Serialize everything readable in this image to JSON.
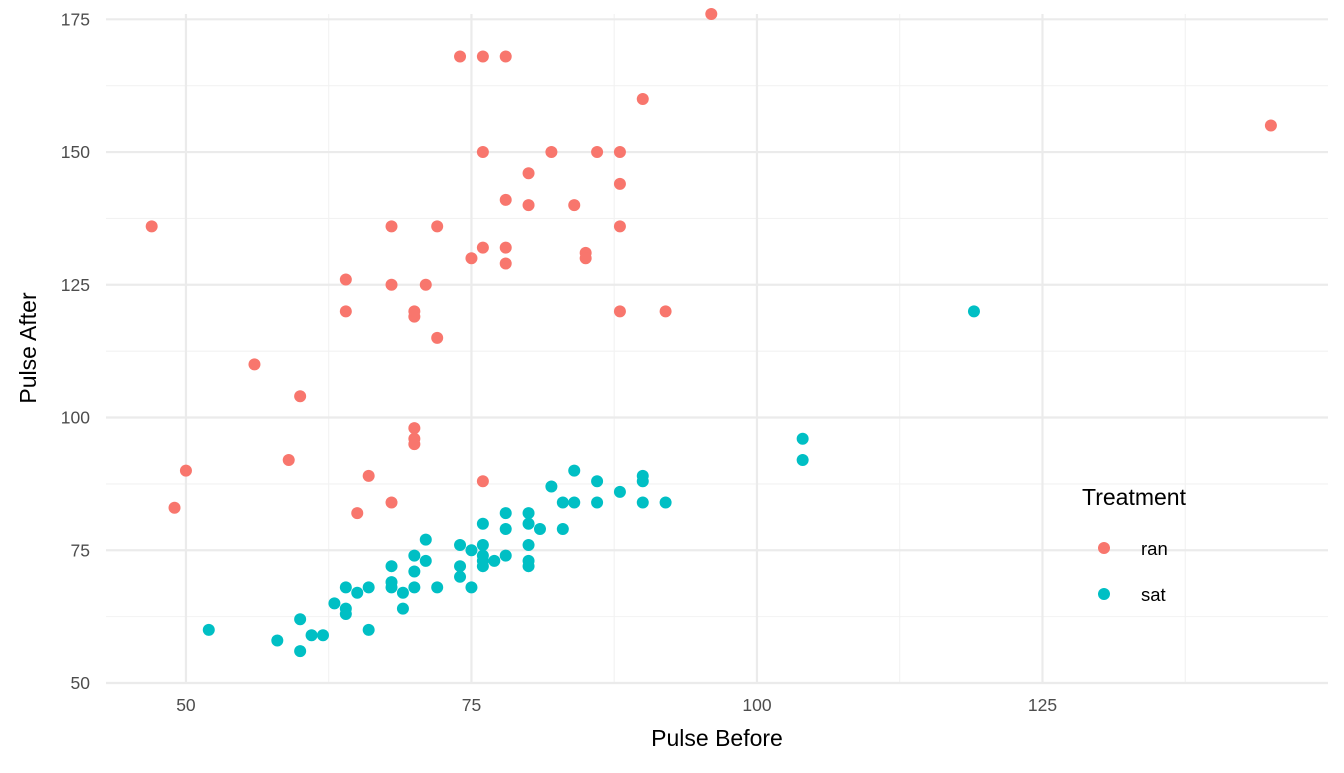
{
  "chart_data": {
    "type": "scatter",
    "title": "",
    "xlabel": "Pulse Before",
    "ylabel": "Pulse After",
    "xlim": [
      43,
      150
    ],
    "ylim": [
      50,
      176
    ],
    "x_ticks": [
      50,
      75,
      100,
      125
    ],
    "y_ticks": [
      50,
      75,
      100,
      125,
      150,
      175
    ],
    "grid": true,
    "legend": {
      "title": "Treatment",
      "position": "right"
    },
    "series": [
      {
        "name": "ran",
        "color": "#F8766D",
        "points": [
          [
            96,
            176
          ],
          [
            74,
            168
          ],
          [
            76,
            168
          ],
          [
            78,
            168
          ],
          [
            90,
            160
          ],
          [
            145,
            155
          ],
          [
            76,
            150
          ],
          [
            82,
            150
          ],
          [
            86,
            150
          ],
          [
            88,
            150
          ],
          [
            80,
            146
          ],
          [
            88,
            144
          ],
          [
            78,
            141
          ],
          [
            80,
            140
          ],
          [
            84,
            140
          ],
          [
            47,
            136
          ],
          [
            68,
            136
          ],
          [
            72,
            136
          ],
          [
            88,
            136
          ],
          [
            76,
            132
          ],
          [
            78,
            132
          ],
          [
            85,
            131
          ],
          [
            75,
            130
          ],
          [
            85,
            130
          ],
          [
            78,
            129
          ],
          [
            64,
            126
          ],
          [
            68,
            125
          ],
          [
            71,
            125
          ],
          [
            64,
            120
          ],
          [
            70,
            120
          ],
          [
            88,
            120
          ],
          [
            92,
            120
          ],
          [
            70,
            119
          ],
          [
            72,
            115
          ],
          [
            56,
            110
          ],
          [
            60,
            104
          ],
          [
            70,
            98
          ],
          [
            70,
            96
          ],
          [
            70,
            95
          ],
          [
            59,
            92
          ],
          [
            50,
            90
          ],
          [
            66,
            89
          ],
          [
            76,
            88
          ],
          [
            68,
            84
          ],
          [
            49,
            83
          ],
          [
            65,
            82
          ]
        ]
      },
      {
        "name": "sat",
        "color": "#00BFC4",
        "points": [
          [
            119,
            120
          ],
          [
            104,
            96
          ],
          [
            104,
            92
          ],
          [
            84,
            90
          ],
          [
            90,
            89
          ],
          [
            86,
            88
          ],
          [
            90,
            88
          ],
          [
            82,
            87
          ],
          [
            88,
            86
          ],
          [
            83,
            84
          ],
          [
            84,
            84
          ],
          [
            86,
            84
          ],
          [
            90,
            84
          ],
          [
            92,
            84
          ],
          [
            78,
            82
          ],
          [
            80,
            82
          ],
          [
            76,
            80
          ],
          [
            80,
            80
          ],
          [
            78,
            79
          ],
          [
            81,
            79
          ],
          [
            83,
            79
          ],
          [
            71,
            77
          ],
          [
            74,
            76
          ],
          [
            76,
            76
          ],
          [
            80,
            76
          ],
          [
            75,
            75
          ],
          [
            70,
            74
          ],
          [
            76,
            74
          ],
          [
            78,
            74
          ],
          [
            71,
            73
          ],
          [
            76,
            73
          ],
          [
            77,
            73
          ],
          [
            80,
            73
          ],
          [
            68,
            72
          ],
          [
            74,
            72
          ],
          [
            76,
            72
          ],
          [
            80,
            72
          ],
          [
            70,
            71
          ],
          [
            74,
            70
          ],
          [
            68,
            69
          ],
          [
            64,
            68
          ],
          [
            66,
            68
          ],
          [
            68,
            68
          ],
          [
            70,
            68
          ],
          [
            72,
            68
          ],
          [
            75,
            68
          ],
          [
            65,
            67
          ],
          [
            69,
            67
          ],
          [
            63,
            65
          ],
          [
            64,
            64
          ],
          [
            69,
            64
          ],
          [
            64,
            63
          ],
          [
            60,
            62
          ],
          [
            52,
            60
          ],
          [
            66,
            60
          ],
          [
            61,
            59
          ],
          [
            62,
            59
          ],
          [
            58,
            58
          ],
          [
            60,
            56
          ]
        ]
      }
    ]
  }
}
